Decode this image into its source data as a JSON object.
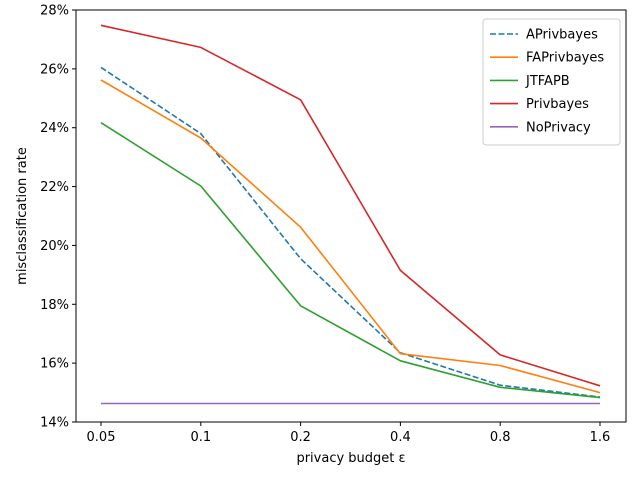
{
  "chart_data": {
    "type": "line",
    "xlabel": "privacy budget ε",
    "ylabel": "misclassification rate",
    "categories": [
      "0.05",
      "0.1",
      "0.2",
      "0.4",
      "0.8",
      "1.6"
    ],
    "yticks": [
      14,
      16,
      18,
      20,
      22,
      24,
      26,
      28
    ],
    "ytick_labels": [
      "14%",
      "16%",
      "18%",
      "20%",
      "22%",
      "24%",
      "26%",
      "28%"
    ],
    "ylim": [
      14,
      28
    ],
    "grid": false,
    "legend_position": "top-right",
    "series": [
      {
        "name": "APrivbayes",
        "color": "#1f77b4",
        "dashed": true,
        "values": [
          26.05,
          23.8,
          19.55,
          16.35,
          15.25,
          14.85
        ]
      },
      {
        "name": "FAPrivbayes",
        "color": "#ff7f0e",
        "dashed": false,
        "values": [
          25.62,
          23.65,
          20.62,
          16.32,
          15.92,
          15.0
        ]
      },
      {
        "name": "JTFAPB",
        "color": "#2ca02c",
        "dashed": false,
        "values": [
          24.17,
          22.02,
          17.95,
          16.08,
          15.18,
          14.83
        ]
      },
      {
        "name": "Privbayes",
        "color": "#d62728",
        "dashed": false,
        "values": [
          27.48,
          26.73,
          24.95,
          19.15,
          16.28,
          15.23
        ]
      },
      {
        "name": "NoPrivacy",
        "color": "#9467bd",
        "dashed": false,
        "values": [
          14.63,
          14.63,
          14.63,
          14.63,
          14.63,
          14.63
        ]
      }
    ]
  }
}
